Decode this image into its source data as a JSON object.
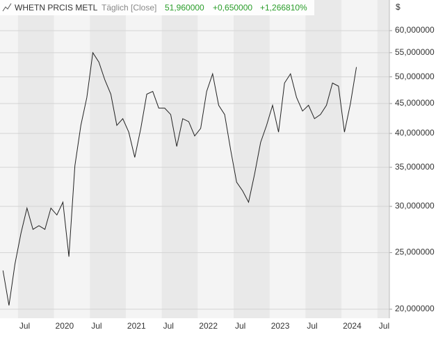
{
  "header": {
    "title": "WHETN PRCIS METL",
    "interval": "Täglich [Close]",
    "last": "51,960000",
    "change": "+0,650000",
    "change_pct": "+1,266810%"
  },
  "chart_data": {
    "type": "line",
    "log_scale": true,
    "grid": true,
    "y_unit": "$",
    "x": [
      "2019-04",
      "2019-05",
      "2019-06",
      "2019-07",
      "2019-08",
      "2019-09",
      "2019-10",
      "2019-11",
      "2019-12",
      "2020-01",
      "2020-02",
      "2020-03",
      "2020-04",
      "2020-05",
      "2020-06",
      "2020-07",
      "2020-08",
      "2020-09",
      "2020-10",
      "2020-11",
      "2020-12",
      "2021-01",
      "2021-02",
      "2021-03",
      "2021-04",
      "2021-05",
      "2021-06",
      "2021-07",
      "2021-08",
      "2021-09",
      "2021-10",
      "2021-11",
      "2021-12",
      "2022-01",
      "2022-02",
      "2022-03",
      "2022-04",
      "2022-05",
      "2022-06",
      "2022-07",
      "2022-08",
      "2022-09",
      "2022-10",
      "2022-11",
      "2022-12",
      "2023-01",
      "2023-02",
      "2023-03",
      "2023-04",
      "2023-05",
      "2023-06",
      "2023-07",
      "2023-08",
      "2023-09",
      "2023-10",
      "2023-11",
      "2023-12",
      "2024-01",
      "2024-02",
      "2024-03"
    ],
    "series": [
      {
        "name": "WHETN PRCIS METL",
        "color": "#222222",
        "values": [
          23.3,
          20.3,
          23.9,
          27.0,
          29.8,
          27.4,
          27.8,
          27.4,
          29.8,
          29.0,
          30.5,
          24.6,
          35.2,
          41.3,
          46.1,
          55.0,
          53.0,
          49.4,
          46.7,
          41.3,
          42.4,
          40.2,
          36.4,
          40.8,
          46.7,
          47.2,
          44.2,
          44.2,
          43.1,
          38.0,
          42.4,
          41.9,
          39.6,
          40.8,
          47.2,
          50.6,
          44.7,
          43.1,
          37.5,
          33.0,
          31.9,
          30.5,
          34.1,
          38.6,
          41.3,
          44.7,
          40.2,
          48.8,
          50.6,
          46.1,
          43.7,
          44.7,
          42.4,
          43.1,
          44.7,
          48.8,
          48.2,
          40.2,
          45.0,
          51.96
        ]
      }
    ],
    "xlim": [
      "2019-04",
      "2024-09"
    ],
    "xticks": [
      {
        "value": "2019-07",
        "label": "Jul"
      },
      {
        "value": "2020-01",
        "label": "2020"
      },
      {
        "value": "2020-07",
        "label": "Jul"
      },
      {
        "value": "2021-01",
        "label": "2021"
      },
      {
        "value": "2021-07",
        "label": "Jul"
      },
      {
        "value": "2022-01",
        "label": "2022"
      },
      {
        "value": "2022-07",
        "label": "Jul"
      },
      {
        "value": "2023-01",
        "label": "2023"
      },
      {
        "value": "2023-07",
        "label": "Jul"
      },
      {
        "value": "2024-01",
        "label": "2024"
      },
      {
        "value": "2024-07",
        "label": "Jul"
      }
    ],
    "ylim": [
      19.3,
      67.7
    ],
    "yticks": [
      {
        "value": 20,
        "label": "20,000000"
      },
      {
        "value": 25,
        "label": "25,000000"
      },
      {
        "value": 30,
        "label": "30,000000"
      },
      {
        "value": 35,
        "label": "35,000000"
      },
      {
        "value": 40,
        "label": "40,000000"
      },
      {
        "value": 45,
        "label": "45,000000"
      },
      {
        "value": 50,
        "label": "50,000000"
      },
      {
        "value": 55,
        "label": "55,000000"
      },
      {
        "value": 60,
        "label": "60,000000"
      }
    ]
  }
}
